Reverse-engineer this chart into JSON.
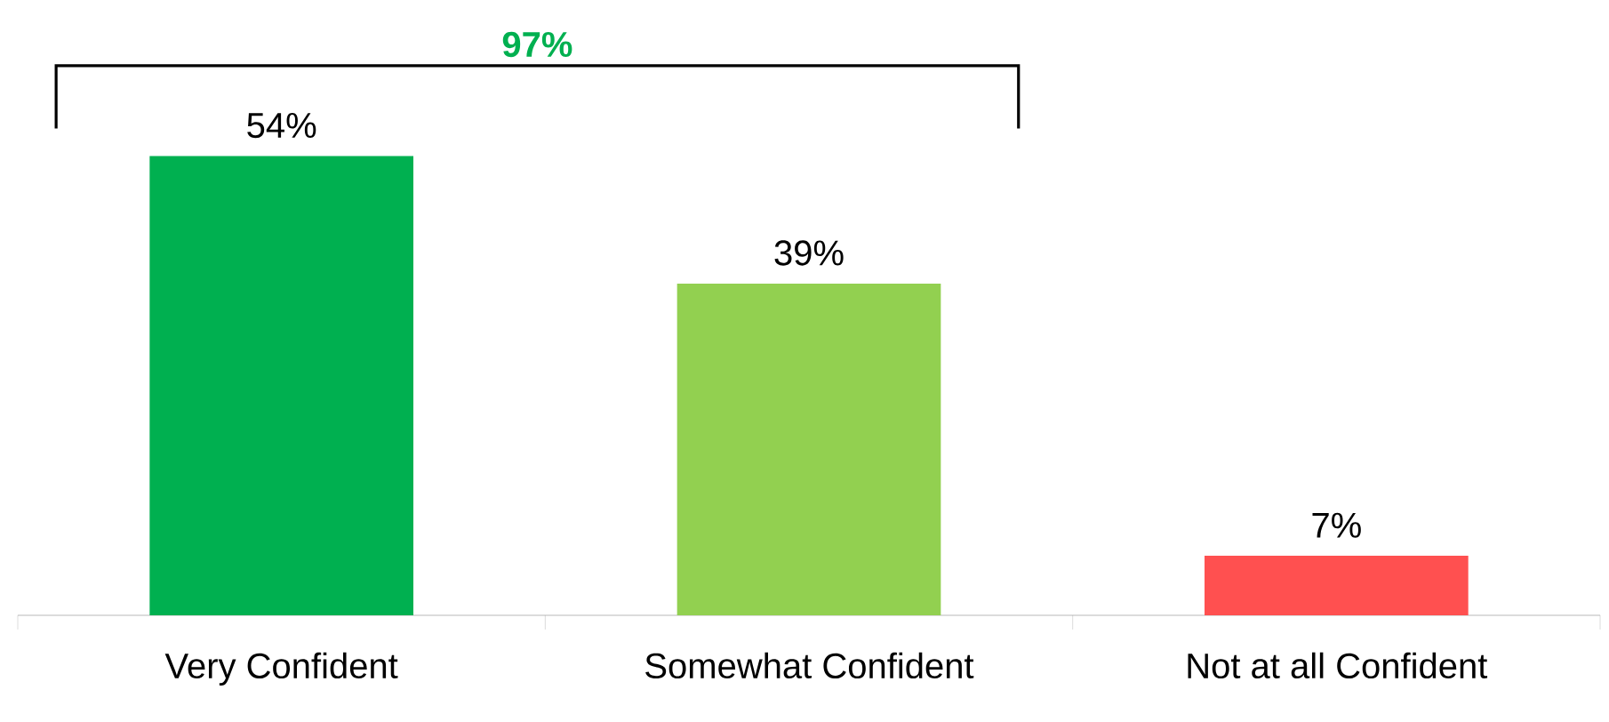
{
  "chart_data": {
    "type": "bar",
    "categories": [
      "Very Confident",
      "Somewhat Confident",
      "Not at all Confident"
    ],
    "values": [
      54,
      39,
      7
    ],
    "colors": [
      "#00b050",
      "#92d050",
      "#ff5050"
    ],
    "value_labels": [
      "54%",
      "39%",
      "7%"
    ],
    "annotations": [
      "97%"
    ]
  }
}
